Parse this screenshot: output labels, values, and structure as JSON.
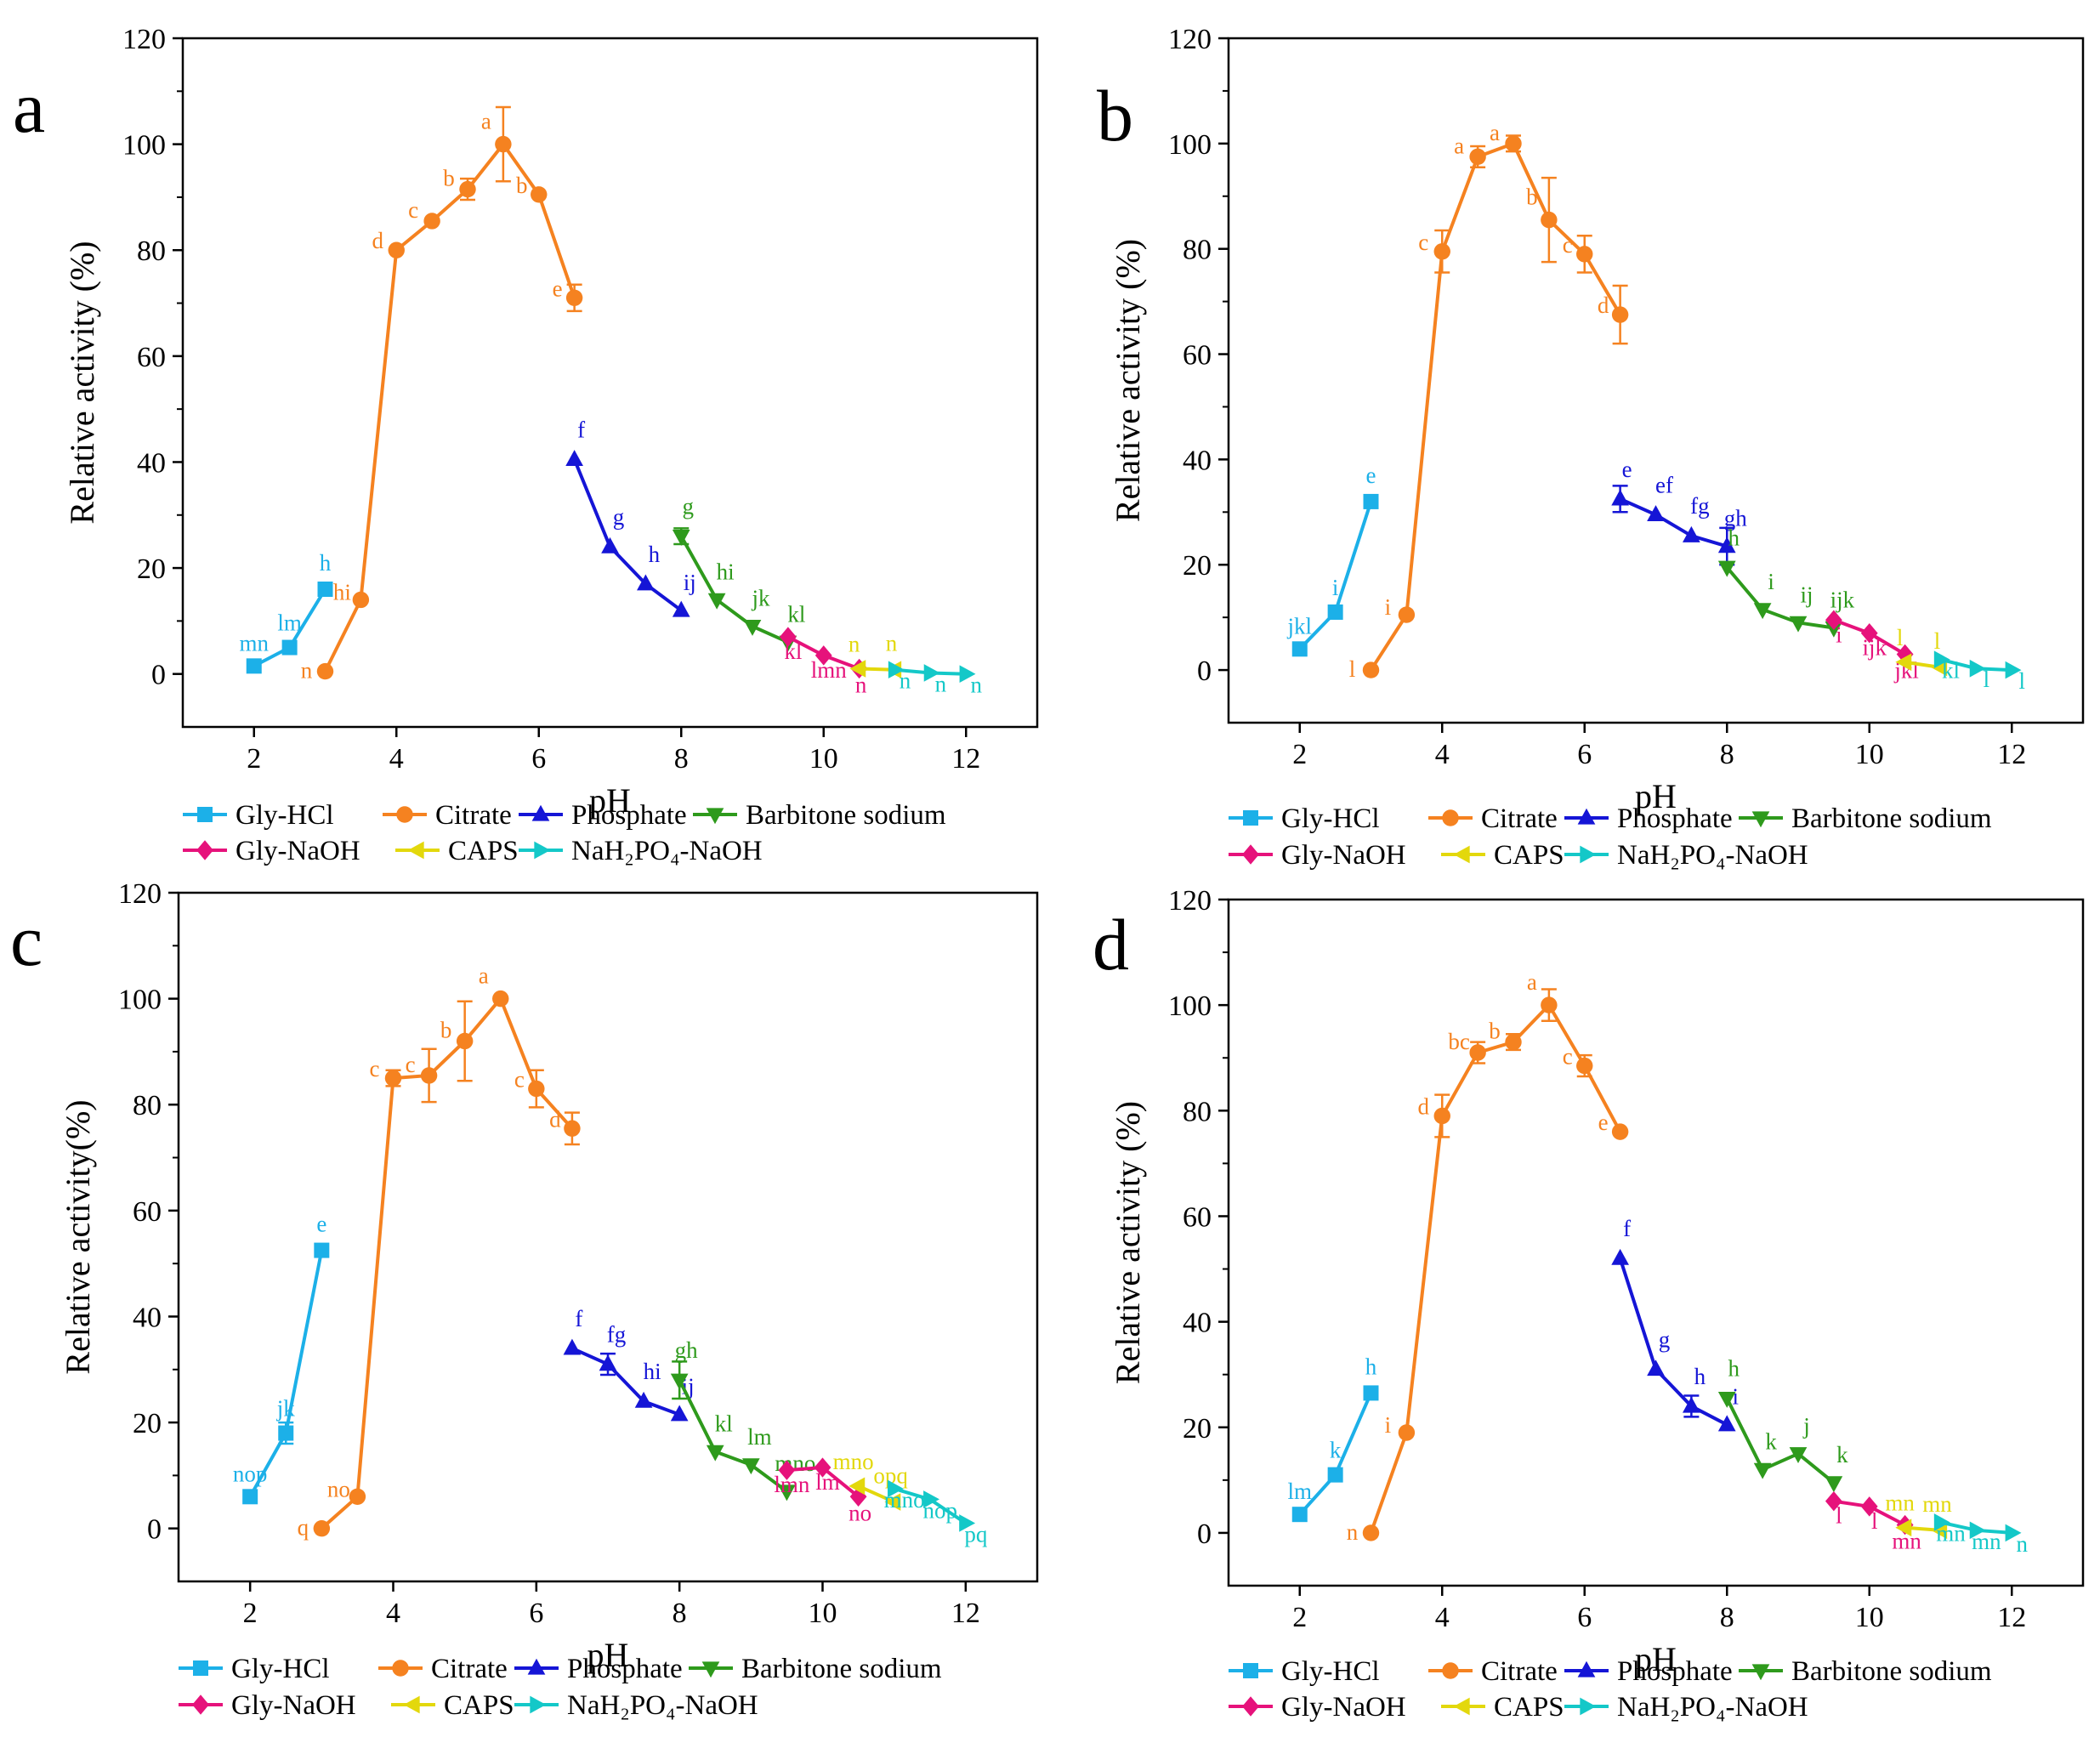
{
  "series_styles": [
    {
      "name": "Gly-HCl",
      "color": "#1cb0e8",
      "marker": "square"
    },
    {
      "name": "Citrate",
      "color": "#f58220",
      "marker": "circle"
    },
    {
      "name": "Phosphate",
      "color": "#1515d6",
      "marker": "triangle-up"
    },
    {
      "name": "Barbitone sodium",
      "color": "#2e9a1c",
      "marker": "triangle-down"
    },
    {
      "name": "Gly-NaOH",
      "color": "#e6127b",
      "marker": "diamond"
    },
    {
      "name": "CAPS",
      "color": "#e3d80c",
      "marker": "triangle-left"
    },
    {
      "name": "NaH₂PO₄-NaOH",
      "color": "#14c8c8",
      "marker": "triangle-right"
    }
  ],
  "chart_data": [
    {
      "panel": "a",
      "type": "line",
      "xlabel": "pH",
      "ylabel": "Relative activity (%)",
      "xlim": [
        1,
        13
      ],
      "ylim": [
        -10,
        120
      ],
      "xticks": [
        2,
        4,
        6,
        8,
        10,
        12
      ],
      "yticks": [
        0,
        20,
        40,
        60,
        80,
        100,
        120
      ],
      "series": [
        {
          "name": "Gly-HCl",
          "x": [
            2,
            2.5,
            3
          ],
          "y": [
            1.5,
            5,
            16
          ],
          "err": [
            0,
            0,
            0
          ],
          "labels": [
            "mn",
            "lm",
            "h"
          ]
        },
        {
          "name": "Citrate",
          "x": [
            3,
            3.5,
            4,
            4.5,
            5,
            5.5,
            6,
            6.5
          ],
          "y": [
            0.5,
            14,
            80,
            85.5,
            91.5,
            100,
            90.5,
            71
          ],
          "err": [
            0,
            0,
            0,
            0,
            2,
            7,
            0,
            2.5
          ],
          "labels": [
            "n",
            "hi",
            "d",
            "c",
            "b",
            "a",
            "b",
            "e"
          ]
        },
        {
          "name": "Phosphate",
          "x": [
            6.5,
            7,
            7.5,
            8
          ],
          "y": [
            40.5,
            24,
            17,
            12
          ],
          "err": [
            0,
            0,
            0,
            0
          ],
          "labels": [
            "f",
            "g",
            "h",
            "ij"
          ]
        },
        {
          "name": "Barbitone sodium",
          "x": [
            8,
            8.5,
            9,
            9.5
          ],
          "y": [
            26,
            14,
            9,
            6
          ],
          "err": [
            1.5,
            0,
            0,
            0
          ],
          "labels": [
            "g",
            "hi",
            "jk",
            "kl"
          ]
        },
        {
          "name": "Gly-NaOH",
          "x": [
            9.5,
            10,
            10.5
          ],
          "y": [
            7,
            3.5,
            1
          ],
          "err": [
            0,
            0,
            0
          ],
          "labels": [
            "kl",
            "lmn",
            "n"
          ]
        },
        {
          "name": "CAPS",
          "x": [
            10.5,
            11
          ],
          "y": [
            1,
            0.8
          ],
          "err": [
            0,
            0
          ],
          "labels": [
            "n",
            "n"
          ]
        },
        {
          "name": "NaH₂PO₄-NaOH",
          "x": [
            11,
            11.5,
            12
          ],
          "y": [
            0.8,
            0.2,
            0
          ],
          "err": [
            0,
            0,
            0
          ],
          "labels": [
            "n",
            "n",
            "n"
          ]
        }
      ]
    },
    {
      "panel": "b",
      "type": "line",
      "xlabel": "pH",
      "ylabel": "Relative activity (%)",
      "xlim": [
        1,
        13
      ],
      "ylim": [
        -10,
        120
      ],
      "xticks": [
        2,
        4,
        6,
        8,
        10,
        12
      ],
      "yticks": [
        0,
        20,
        40,
        60,
        80,
        100,
        120
      ],
      "series": [
        {
          "name": "Gly-HCl",
          "x": [
            2,
            2.5,
            3
          ],
          "y": [
            4,
            11,
            32
          ],
          "err": [
            0,
            0,
            0
          ],
          "labels": [
            "jkl",
            "i",
            "e"
          ]
        },
        {
          "name": "Citrate",
          "x": [
            3,
            3.5,
            4,
            4.5,
            5,
            5.5,
            6,
            6.5
          ],
          "y": [
            0,
            10.5,
            79.5,
            97.5,
            100,
            85.5,
            79,
            67.5
          ],
          "err": [
            0,
            0,
            4,
            2,
            1.5,
            8,
            3.5,
            5.5
          ],
          "labels": [
            "l",
            "i",
            "c",
            "a",
            "a",
            "b",
            "c",
            "d"
          ]
        },
        {
          "name": "Phosphate",
          "x": [
            6.5,
            7,
            7.5,
            8
          ],
          "y": [
            32.5,
            29.5,
            25.5,
            23.5
          ],
          "err": [
            2.5,
            0,
            0,
            3.5
          ],
          "labels": [
            "e",
            "ef",
            "fg",
            "gh"
          ]
        },
        {
          "name": "Barbitone sodium",
          "x": [
            8,
            8.5,
            9,
            9.5
          ],
          "y": [
            19.5,
            11.5,
            9,
            8
          ],
          "err": [
            0,
            0,
            0,
            0
          ],
          "labels": [
            "h",
            "i",
            "ij",
            "ijk"
          ]
        },
        {
          "name": "Gly-NaOH",
          "x": [
            9.5,
            10,
            10.5
          ],
          "y": [
            9.5,
            7,
            3
          ],
          "err": [
            0,
            0,
            0
          ],
          "labels": [
            "i",
            "ijk",
            "jkl"
          ]
        },
        {
          "name": "CAPS",
          "x": [
            10.5,
            11
          ],
          "y": [
            1.5,
            0.5
          ],
          "err": [
            0,
            0
          ],
          "labels": [
            "l",
            "l"
          ]
        },
        {
          "name": "NaH₂PO₄-NaOH",
          "x": [
            11,
            11.5,
            12
          ],
          "y": [
            2,
            0.3,
            0
          ],
          "err": [
            0,
            0,
            0
          ],
          "labels": [
            "kl",
            "l",
            "l"
          ]
        }
      ]
    },
    {
      "panel": "c",
      "type": "line",
      "xlabel": "pH",
      "ylabel": "Relative activity(%)",
      "xlim": [
        1,
        13
      ],
      "ylim": [
        -10,
        120
      ],
      "xticks": [
        2,
        4,
        6,
        8,
        10,
        12
      ],
      "yticks": [
        0,
        20,
        40,
        60,
        80,
        100,
        120
      ],
      "series": [
        {
          "name": "Gly-HCl",
          "x": [
            2,
            2.5,
            3
          ],
          "y": [
            6,
            18,
            52.5
          ],
          "err": [
            0,
            2,
            0
          ],
          "labels": [
            "nop",
            "jk",
            "e"
          ]
        },
        {
          "name": "Citrate",
          "x": [
            3,
            3.5,
            4,
            4.5,
            5,
            5.5,
            6,
            6.5
          ],
          "y": [
            0,
            6,
            85,
            85.5,
            92,
            100,
            83,
            75.5
          ],
          "err": [
            0,
            0,
            1.5,
            5,
            7.5,
            0,
            3.5,
            3
          ],
          "labels": [
            "q",
            "no",
            "c",
            "c",
            "b",
            "a",
            "c",
            "d"
          ]
        },
        {
          "name": "Phosphate",
          "x": [
            6.5,
            7,
            7.5,
            8
          ],
          "y": [
            34,
            31,
            24,
            21.5
          ],
          "err": [
            0,
            2,
            0,
            0
          ],
          "labels": [
            "f",
            "fg",
            "hi",
            "ij"
          ]
        },
        {
          "name": "Barbitone sodium",
          "x": [
            8,
            8.5,
            9,
            9.5
          ],
          "y": [
            28,
            14.5,
            12,
            7
          ],
          "err": [
            3.5,
            0,
            0,
            0
          ],
          "labels": [
            "gh",
            "kl",
            "lm",
            "mno"
          ]
        },
        {
          "name": "Gly-NaOH",
          "x": [
            9.5,
            10,
            10.5
          ],
          "y": [
            11,
            11.5,
            6
          ],
          "err": [
            0,
            0,
            0
          ],
          "labels": [
            "lmn",
            "lm",
            "no"
          ]
        },
        {
          "name": "CAPS",
          "x": [
            10.5,
            11
          ],
          "y": [
            8,
            5
          ],
          "err": [
            0,
            0
          ],
          "labels": [
            "mno",
            "opq"
          ]
        },
        {
          "name": "NaH₂PO₄-NaOH",
          "x": [
            11,
            11.5,
            12
          ],
          "y": [
            7.5,
            5.5,
            1
          ],
          "err": [
            0,
            0,
            0
          ],
          "labels": [
            "mno",
            "nop",
            "pq"
          ]
        }
      ]
    },
    {
      "panel": "d",
      "type": "line",
      "xlabel": "pH",
      "ylabel": "Relative activity (%)",
      "xlim": [
        1,
        13
      ],
      "ylim": [
        -10,
        120
      ],
      "xticks": [
        2,
        4,
        6,
        8,
        10,
        12
      ],
      "yticks": [
        0,
        20,
        40,
        60,
        80,
        100,
        120
      ],
      "series": [
        {
          "name": "Gly-HCl",
          "x": [
            2,
            2.5,
            3
          ],
          "y": [
            3.5,
            11,
            26.5
          ],
          "err": [
            0,
            0,
            0
          ],
          "labels": [
            "lm",
            "k",
            "h"
          ]
        },
        {
          "name": "Citrate",
          "x": [
            3,
            3.5,
            4,
            4.5,
            5,
            5.5,
            6,
            6.5
          ],
          "y": [
            0,
            19,
            79,
            91,
            93,
            100,
            88.5,
            76
          ],
          "err": [
            0,
            0,
            4,
            2,
            1.5,
            3,
            2,
            0
          ],
          "labels": [
            "n",
            "i",
            "d",
            "bc",
            "b",
            "a",
            "c",
            "e"
          ]
        },
        {
          "name": "Phosphate",
          "x": [
            6.5,
            7,
            7.5,
            8
          ],
          "y": [
            52,
            31,
            24,
            20.5
          ],
          "err": [
            0,
            0,
            2,
            0
          ],
          "labels": [
            "f",
            "g",
            "h",
            "i"
          ]
        },
        {
          "name": "Barbitone sodium",
          "x": [
            8,
            8.5,
            9,
            9.5
          ],
          "y": [
            25.5,
            12,
            15,
            9.5
          ],
          "err": [
            0,
            0,
            0,
            0
          ],
          "labels": [
            "h",
            "k",
            "j",
            "k"
          ]
        },
        {
          "name": "Gly-NaOH",
          "x": [
            9.5,
            10,
            10.5
          ],
          "y": [
            6,
            5,
            1.5
          ],
          "err": [
            0,
            0,
            0
          ],
          "labels": [
            "l",
            "l",
            "mn"
          ]
        },
        {
          "name": "CAPS",
          "x": [
            10.5,
            11
          ],
          "y": [
            1,
            0.5
          ],
          "err": [
            0,
            0
          ],
          "labels": [
            "mn",
            "mn"
          ]
        },
        {
          "name": "NaH₂PO₄-NaOH",
          "x": [
            11,
            11.5,
            12
          ],
          "y": [
            2,
            0.5,
            0
          ],
          "err": [
            0,
            0,
            0
          ],
          "labels": [
            "mn",
            "mn",
            "n"
          ]
        }
      ]
    }
  ]
}
